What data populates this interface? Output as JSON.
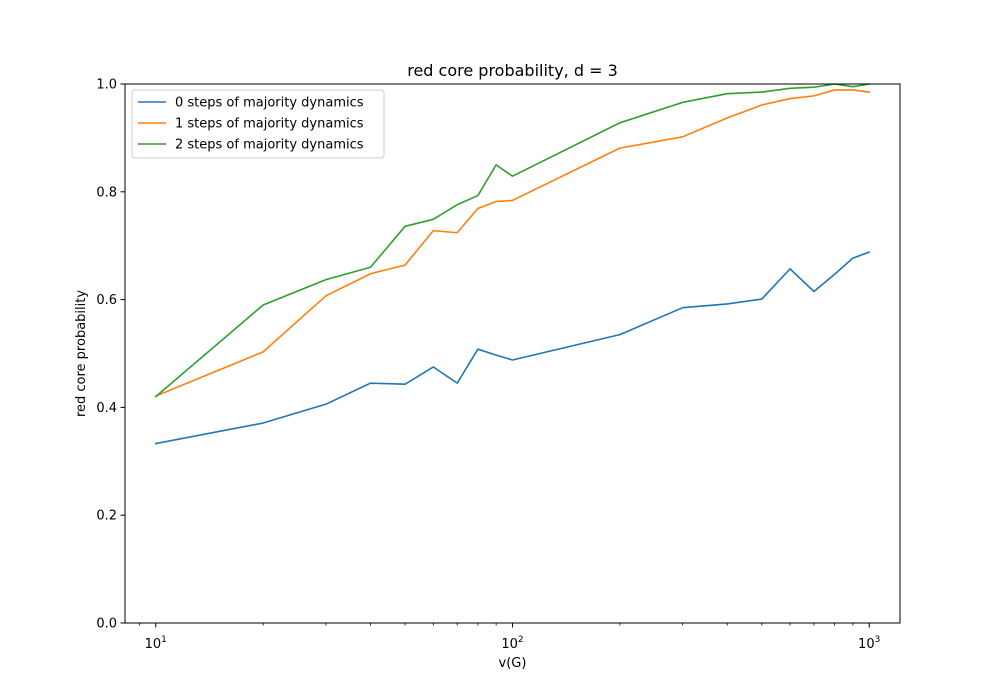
{
  "chart_data": {
    "type": "line",
    "title": "red core probability, d = 3",
    "xlabel": "v(G)",
    "ylabel": "red core probability",
    "x_scale": "log",
    "xlim": [
      8.2,
      1220
    ],
    "ylim": [
      0.0,
      1.0
    ],
    "x_ticks": [
      {
        "value": 10,
        "base": "10",
        "exp": "1"
      },
      {
        "value": 100,
        "base": "10",
        "exp": "2"
      },
      {
        "value": 1000,
        "base": "10",
        "exp": "3"
      }
    ],
    "y_ticks": [
      "0.0",
      "0.2",
      "0.4",
      "0.6",
      "0.8",
      "1.0"
    ],
    "legend_position": "upper-left",
    "grid": false,
    "x": [
      10,
      20,
      30,
      40,
      50,
      60,
      70,
      80,
      90,
      100,
      200,
      300,
      400,
      500,
      600,
      700,
      800,
      900,
      1000
    ],
    "series": [
      {
        "name": "0 steps of majority dynamics",
        "color": "#1f77b4",
        "values": [
          0.333,
          0.371,
          0.406,
          0.445,
          0.443,
          0.475,
          0.445,
          0.508,
          0.497,
          0.488,
          0.535,
          0.585,
          0.592,
          0.601,
          0.657,
          0.615,
          0.647,
          0.677,
          0.688
        ]
      },
      {
        "name": "1 steps of majority dynamics",
        "color": "#ff7f0e",
        "values": [
          0.421,
          0.503,
          0.607,
          0.648,
          0.664,
          0.728,
          0.724,
          0.769,
          0.782,
          0.784,
          0.881,
          0.902,
          0.937,
          0.961,
          0.973,
          0.978,
          0.989,
          0.989,
          0.985
        ]
      },
      {
        "name": "2 steps of majority dynamics",
        "color": "#2ca02c",
        "values": [
          0.42,
          0.59,
          0.637,
          0.66,
          0.736,
          0.749,
          0.776,
          0.793,
          0.85,
          0.829,
          0.928,
          0.966,
          0.982,
          0.985,
          0.992,
          0.994,
          1.0,
          0.995,
          1.0
        ]
      }
    ]
  }
}
